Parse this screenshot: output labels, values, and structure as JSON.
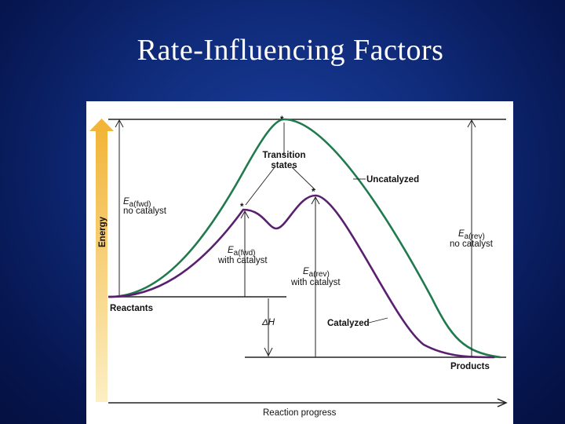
{
  "slide": {
    "title": "Rate-Influencing Factors"
  },
  "diagram": {
    "energy_axis_label": "Energy",
    "x_axis_label": "Reaction progress",
    "transition_states": [
      "Transition",
      "states"
    ],
    "uncatalyzed_label": "Uncatalyzed",
    "catalyzed_label": "Catalyzed",
    "reactants_label": "Reactants",
    "products_label": "Products",
    "ea_fwd_nocat": {
      "symbol": "E",
      "sub": "a(fwd)",
      "note": "no catalyst"
    },
    "ea_fwd_cat": {
      "symbol": "E",
      "sub": "a(fwd)",
      "note": "with catalyst"
    },
    "ea_rev_cat": {
      "symbol": "E",
      "sub": "a(rev)",
      "note": "with catalyst"
    },
    "ea_rev_nocat": {
      "symbol": "E",
      "sub": "a(rev)",
      "note": "no catalyst"
    },
    "delta_h": "ΔH",
    "star": "*",
    "colors": {
      "uncatalyzed": "#1f7a4d",
      "catalyzed": "#5a1f6e",
      "energy_arrow": "#f2c94c"
    }
  }
}
